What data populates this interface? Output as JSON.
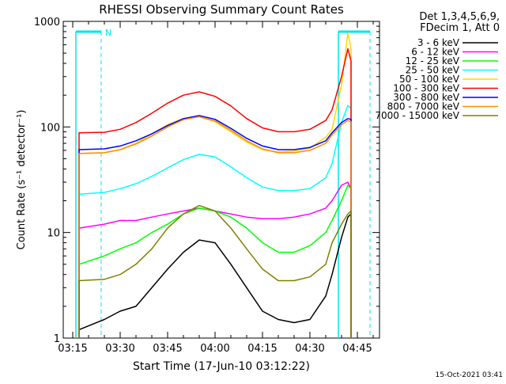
{
  "colors": {
    "background": "#ffffff",
    "axis": "#000000",
    "attenuator_marker": "#00e5ee"
  },
  "chart_data": {
    "type": "line",
    "title": "RHESSI Observing Summary Count Rates",
    "xlabel": "Start Time (17-Jun-10 03:12:22)",
    "ylabel": "Count Rate (s⁻¹ detector⁻¹)",
    "yscale": "log",
    "ylim": [
      1,
      1000
    ],
    "xlim": [
      "03:12",
      "04:52"
    ],
    "xticks": [
      "03:15",
      "03:30",
      "03:45",
      "04:00",
      "04:15",
      "04:30",
      "04:45"
    ],
    "yticks": [
      "1",
      "10",
      "100",
      "1000"
    ],
    "legend_title": [
      "Det 1,3,4,5,6,9,",
      "FDecim 1, Att 0"
    ],
    "legend_position": "right",
    "timestamp": "15-Oct-2021 03:41",
    "markers": [
      {
        "label": "N",
        "start": "03:16",
        "end": "03:24"
      },
      {
        "label": "",
        "start": "04:39",
        "end": "04:49"
      }
    ],
    "series": [
      {
        "name": "3 - 6 keV",
        "color": "#000000",
        "x": [
          "03:17",
          "03:25",
          "03:30",
          "03:35",
          "03:40",
          "03:45",
          "03:50",
          "03:55",
          "04:00",
          "04:05",
          "04:10",
          "04:15",
          "04:20",
          "04:25",
          "04:30",
          "04:35",
          "04:37",
          "04:40",
          "04:42",
          "04:43"
        ],
        "y": [
          1.2,
          1.5,
          1.8,
          2,
          3,
          4.5,
          6.5,
          8.5,
          8,
          5,
          3,
          1.8,
          1.5,
          1.4,
          1.5,
          2.5,
          4,
          9,
          14,
          15
        ]
      },
      {
        "name": "6 - 12 keV",
        "color": "#ff00ff",
        "x": [
          "03:17",
          "03:25",
          "03:30",
          "03:35",
          "03:40",
          "03:45",
          "03:50",
          "03:55",
          "04:00",
          "04:05",
          "04:10",
          "04:15",
          "04:20",
          "04:25",
          "04:30",
          "04:35",
          "04:37",
          "04:40",
          "04:42",
          "04:43"
        ],
        "y": [
          11,
          12,
          13,
          13,
          14,
          15,
          16,
          17,
          16,
          15,
          14,
          13.5,
          13.5,
          14,
          15,
          17,
          20,
          28,
          30,
          26
        ]
      },
      {
        "name": "12 - 25 keV",
        "color": "#00ff00",
        "x": [
          "03:17",
          "03:25",
          "03:30",
          "03:35",
          "03:40",
          "03:45",
          "03:50",
          "03:55",
          "04:00",
          "04:05",
          "04:10",
          "04:15",
          "04:20",
          "04:25",
          "04:30",
          "04:35",
          "04:37",
          "04:40",
          "04:42",
          "04:43"
        ],
        "y": [
          5,
          6,
          7,
          8,
          10,
          12,
          15,
          17,
          16,
          14,
          11,
          8,
          6.5,
          6.5,
          7.5,
          10,
          13,
          20,
          28,
          26
        ]
      },
      {
        "name": "25 - 50 keV",
        "color": "#00ffff",
        "x": [
          "03:17",
          "03:25",
          "03:30",
          "03:35",
          "03:40",
          "03:45",
          "03:50",
          "03:55",
          "04:00",
          "04:05",
          "04:10",
          "04:15",
          "04:20",
          "04:25",
          "04:30",
          "04:35",
          "04:37",
          "04:40",
          "04:42",
          "04:43"
        ],
        "y": [
          23,
          24,
          26,
          29,
          34,
          41,
          49,
          55,
          52,
          42,
          33,
          27,
          25,
          25,
          26,
          33,
          45,
          110,
          160,
          150
        ]
      },
      {
        "name": "50 - 100 keV",
        "color": "#ffd700",
        "x": [
          "03:17",
          "03:25",
          "03:30",
          "03:35",
          "03:40",
          "03:45",
          "03:50",
          "03:55",
          "04:00",
          "04:05",
          "04:10",
          "04:15",
          "04:20",
          "04:25",
          "04:30",
          "04:35",
          "04:37",
          "04:40",
          "04:42",
          "04:43"
        ],
        "y": [
          56,
          57,
          61,
          70,
          86,
          105,
          120,
          125,
          112,
          90,
          72,
          61,
          58,
          59,
          63,
          80,
          95,
          250,
          780,
          550
        ]
      },
      {
        "name": "100 - 300 keV",
        "color": "#ff0000",
        "x": [
          "03:17",
          "03:25",
          "03:30",
          "03:35",
          "03:40",
          "03:45",
          "03:50",
          "03:55",
          "04:00",
          "04:05",
          "04:10",
          "04:15",
          "04:20",
          "04:25",
          "04:30",
          "04:35",
          "04:37",
          "04:40",
          "04:42",
          "04:43"
        ],
        "y": [
          88,
          89,
          95,
          110,
          135,
          168,
          200,
          215,
          195,
          158,
          120,
          98,
          90,
          90,
          95,
          115,
          145,
          300,
          550,
          420
        ]
      },
      {
        "name": "300 - 800 keV",
        "color": "#0000ff",
        "x": [
          "03:17",
          "03:25",
          "03:30",
          "03:35",
          "03:40",
          "03:45",
          "03:50",
          "03:55",
          "04:00",
          "04:05",
          "04:10",
          "04:15",
          "04:20",
          "04:25",
          "04:30",
          "04:35",
          "04:37",
          "04:40",
          "04:42",
          "04:43"
        ],
        "y": [
          61,
          62,
          66,
          74,
          86,
          103,
          120,
          128,
          118,
          97,
          78,
          66,
          61,
          61,
          64,
          74,
          88,
          110,
          120,
          118
        ]
      },
      {
        "name": "800 - 7000 keV",
        "color": "#ff8c00",
        "x": [
          "03:17",
          "03:25",
          "03:30",
          "03:35",
          "03:40",
          "03:45",
          "03:50",
          "03:55",
          "04:00",
          "04:05",
          "04:10",
          "04:15",
          "04:20",
          "04:25",
          "04:30",
          "04:35",
          "04:37",
          "04:40",
          "04:42",
          "04:43"
        ],
        "y": [
          56,
          57,
          61,
          69,
          82,
          100,
          117,
          125,
          114,
          93,
          74,
          62,
          57,
          57,
          60,
          70,
          84,
          105,
          115,
          112
        ]
      },
      {
        "name": "7000 - 15000 keV",
        "color": "#808000",
        "x": [
          "03:17",
          "03:25",
          "03:30",
          "03:35",
          "03:40",
          "03:45",
          "03:50",
          "03:55",
          "04:00",
          "04:05",
          "04:10",
          "04:15",
          "04:20",
          "04:25",
          "04:30",
          "04:35",
          "04:37",
          "04:40",
          "04:42",
          "04:43"
        ],
        "y": [
          3.5,
          3.6,
          4,
          5,
          7,
          11,
          15,
          18,
          16,
          11,
          7,
          4.5,
          3.5,
          3.5,
          3.8,
          5,
          8,
          12,
          15,
          16
        ]
      }
    ]
  }
}
